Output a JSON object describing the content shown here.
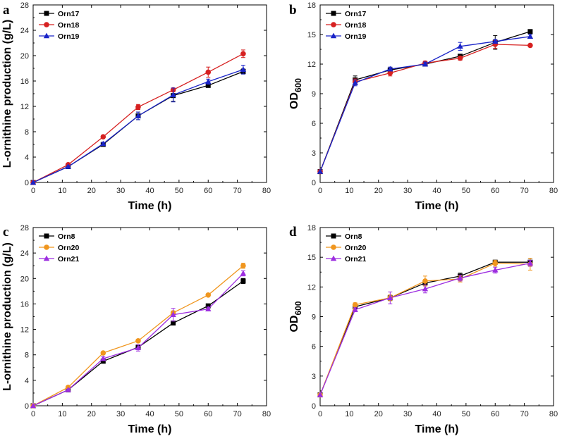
{
  "chart_data": [
    {
      "type": "line",
      "panel": "a",
      "xlabel": "Time (h)",
      "ylabel": "L-ornithine production (g/L)",
      "xlim": [
        0,
        80
      ],
      "ylim": [
        0,
        28
      ],
      "xticks": [
        0,
        10,
        20,
        30,
        40,
        50,
        60,
        70,
        80
      ],
      "yticks": [
        0,
        4,
        8,
        12,
        16,
        20,
        24,
        28
      ],
      "legend_position": "top-left",
      "x": [
        0,
        12,
        24,
        36,
        48,
        60,
        72
      ],
      "series": [
        {
          "name": "Orn17",
          "color": "#000000",
          "marker": "square",
          "values": [
            0,
            2.5,
            6.0,
            10.5,
            13.7,
            15.3,
            17.5
          ],
          "errors": [
            0,
            0.1,
            0.2,
            0.6,
            0.9,
            0.3,
            0.4
          ]
        },
        {
          "name": "Orn18",
          "color": "#d62020",
          "marker": "circle",
          "values": [
            0,
            2.8,
            7.2,
            11.9,
            14.6,
            17.4,
            20.3
          ],
          "errors": [
            0,
            0.1,
            0.1,
            0.4,
            0.3,
            0.8,
            0.6
          ]
        },
        {
          "name": "Orn19",
          "color": "#1a24c8",
          "marker": "triangle",
          "values": [
            0,
            2.5,
            6.1,
            10.5,
            13.8,
            15.9,
            17.8
          ],
          "errors": [
            0,
            0.1,
            0.2,
            0.6,
            1.1,
            0.4,
            0.7
          ]
        }
      ]
    },
    {
      "type": "line",
      "panel": "b",
      "xlabel": "Time (h)",
      "ylabel": "OD",
      "ylabel_sub": "600",
      "xlim": [
        0,
        80
      ],
      "ylim": [
        0,
        18
      ],
      "xticks": [
        0,
        10,
        20,
        30,
        40,
        50,
        60,
        70,
        80
      ],
      "yticks": [
        0,
        3,
        6,
        9,
        12,
        15,
        18
      ],
      "legend_position": "top-left",
      "x": [
        0,
        12,
        24,
        36,
        48,
        60,
        72
      ],
      "series": [
        {
          "name": "Orn17",
          "color": "#000000",
          "marker": "square",
          "values": [
            1.1,
            10.4,
            11.4,
            12.0,
            12.8,
            14.2,
            15.3
          ],
          "errors": [
            0,
            0.4,
            0.2,
            0.2,
            0.2,
            0.7,
            0.2
          ]
        },
        {
          "name": "Orn18",
          "color": "#d62020",
          "marker": "circle",
          "values": [
            1.1,
            10.2,
            11.1,
            12.1,
            12.6,
            14.0,
            13.9
          ],
          "errors": [
            0,
            0.3,
            0.3,
            0.2,
            0.2,
            0.4,
            0.1
          ]
        },
        {
          "name": "Orn19",
          "color": "#1a24c8",
          "marker": "triangle",
          "values": [
            1.1,
            10.1,
            11.5,
            12.0,
            13.8,
            14.3,
            14.8
          ],
          "errors": [
            0,
            0.3,
            0.2,
            0.2,
            0.4,
            0.2,
            0.2
          ]
        }
      ]
    },
    {
      "type": "line",
      "panel": "c",
      "xlabel": "Time (h)",
      "ylabel": "L-ornithine production (g/L)",
      "xlim": [
        0,
        80
      ],
      "ylim": [
        0,
        28
      ],
      "xticks": [
        0,
        10,
        20,
        30,
        40,
        50,
        60,
        70,
        80
      ],
      "yticks": [
        0,
        4,
        8,
        12,
        16,
        20,
        24,
        28
      ],
      "legend_position": "top-left",
      "x": [
        0,
        12,
        24,
        36,
        48,
        60,
        72
      ],
      "series": [
        {
          "name": "Orn8",
          "color": "#000000",
          "marker": "square",
          "values": [
            0,
            2.5,
            7.0,
            9.2,
            13.0,
            15.7,
            19.6
          ],
          "errors": [
            0,
            0.1,
            0.2,
            0.3,
            0.3,
            0.2,
            0.4
          ]
        },
        {
          "name": "Orn20",
          "color": "#f0961e",
          "marker": "circle",
          "values": [
            0,
            2.9,
            8.3,
            10.2,
            14.6,
            17.4,
            22.0
          ],
          "errors": [
            0,
            0.1,
            0.2,
            0.2,
            0.3,
            0.1,
            0.4
          ]
        },
        {
          "name": "Orn21",
          "color": "#9d2ee0",
          "marker": "triangle",
          "values": [
            0,
            2.5,
            7.4,
            9.1,
            14.3,
            15.2,
            20.8
          ],
          "errors": [
            0,
            0.1,
            0.3,
            0.5,
            1.0,
            0.3,
            0.4
          ]
        }
      ]
    },
    {
      "type": "line",
      "panel": "d",
      "xlabel": "Time (h)",
      "ylabel": "OD",
      "ylabel_sub": "600",
      "xlim": [
        0,
        80
      ],
      "ylim": [
        0,
        18
      ],
      "xticks": [
        0,
        10,
        20,
        30,
        40,
        50,
        60,
        70,
        80
      ],
      "yticks": [
        0,
        3,
        6,
        9,
        12,
        15,
        18
      ],
      "legend_position": "top-left",
      "x": [
        0,
        12,
        24,
        36,
        48,
        60,
        72
      ],
      "series": [
        {
          "name": "Orn8",
          "color": "#000000",
          "marker": "square",
          "values": [
            1.1,
            10.0,
            10.9,
            12.4,
            13.1,
            14.5,
            14.5
          ],
          "errors": [
            0,
            0.2,
            0.2,
            0.3,
            0.3,
            0.2,
            0.4
          ]
        },
        {
          "name": "Orn20",
          "color": "#f0961e",
          "marker": "circle",
          "values": [
            1.1,
            10.2,
            10.9,
            12.6,
            12.8,
            14.4,
            14.3
          ],
          "errors": [
            0,
            0.2,
            0.3,
            0.5,
            0.3,
            0.3,
            0.6
          ]
        },
        {
          "name": "Orn21",
          "color": "#9d2ee0",
          "marker": "triangle",
          "values": [
            1.1,
            9.7,
            10.9,
            11.8,
            12.9,
            13.7,
            14.4
          ],
          "errors": [
            0,
            0.2,
            0.6,
            0.4,
            0.3,
            0.3,
            0.3
          ]
        }
      ]
    }
  ]
}
